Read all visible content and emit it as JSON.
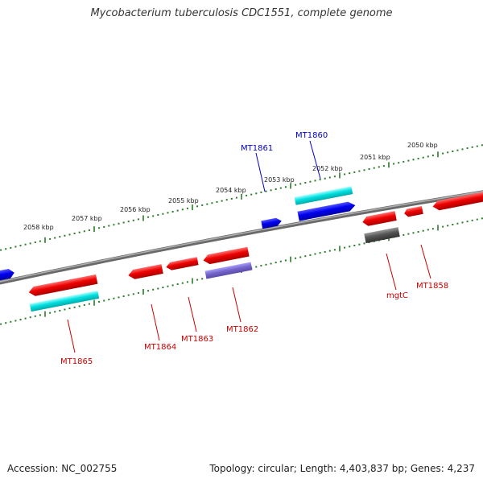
{
  "title": "Mycobacterium tuberculosis CDC1551, complete genome",
  "footer": {
    "accession": "Accession: NC_002755",
    "summary": "Topology: circular; Length: 4,403,837 bp; Genes: 4,237"
  },
  "kbp_labels": [
    "2058 kbp",
    "2057 kbp",
    "2056 kbp",
    "2055 kbp",
    "2054 kbp",
    "2053 kbp",
    "2052 kbp",
    "2051 kbp",
    "2050 kbp"
  ],
  "genes": [
    {
      "name": "MT1861",
      "color": "#0000cc"
    },
    {
      "name": "MT1860",
      "color": "#0000cc"
    },
    {
      "name": "MT1865",
      "color": "#cc0000"
    },
    {
      "name": "MT1864",
      "color": "#cc0000"
    },
    {
      "name": "MT1863",
      "color": "#cc0000"
    },
    {
      "name": "MT1862",
      "color": "#cc0000"
    },
    {
      "name": "mgtC",
      "color": "#cc0000"
    },
    {
      "name": "MT1858",
      "color": "#cc0000"
    }
  ],
  "colors": {
    "backbone": "#808080",
    "forward_cds": "#0000ee",
    "reverse_cds": "#ee0000",
    "rna": "#00dddd",
    "other": "#7766cc",
    "pseudo": "#555555",
    "tick": "#2a7a2a"
  }
}
